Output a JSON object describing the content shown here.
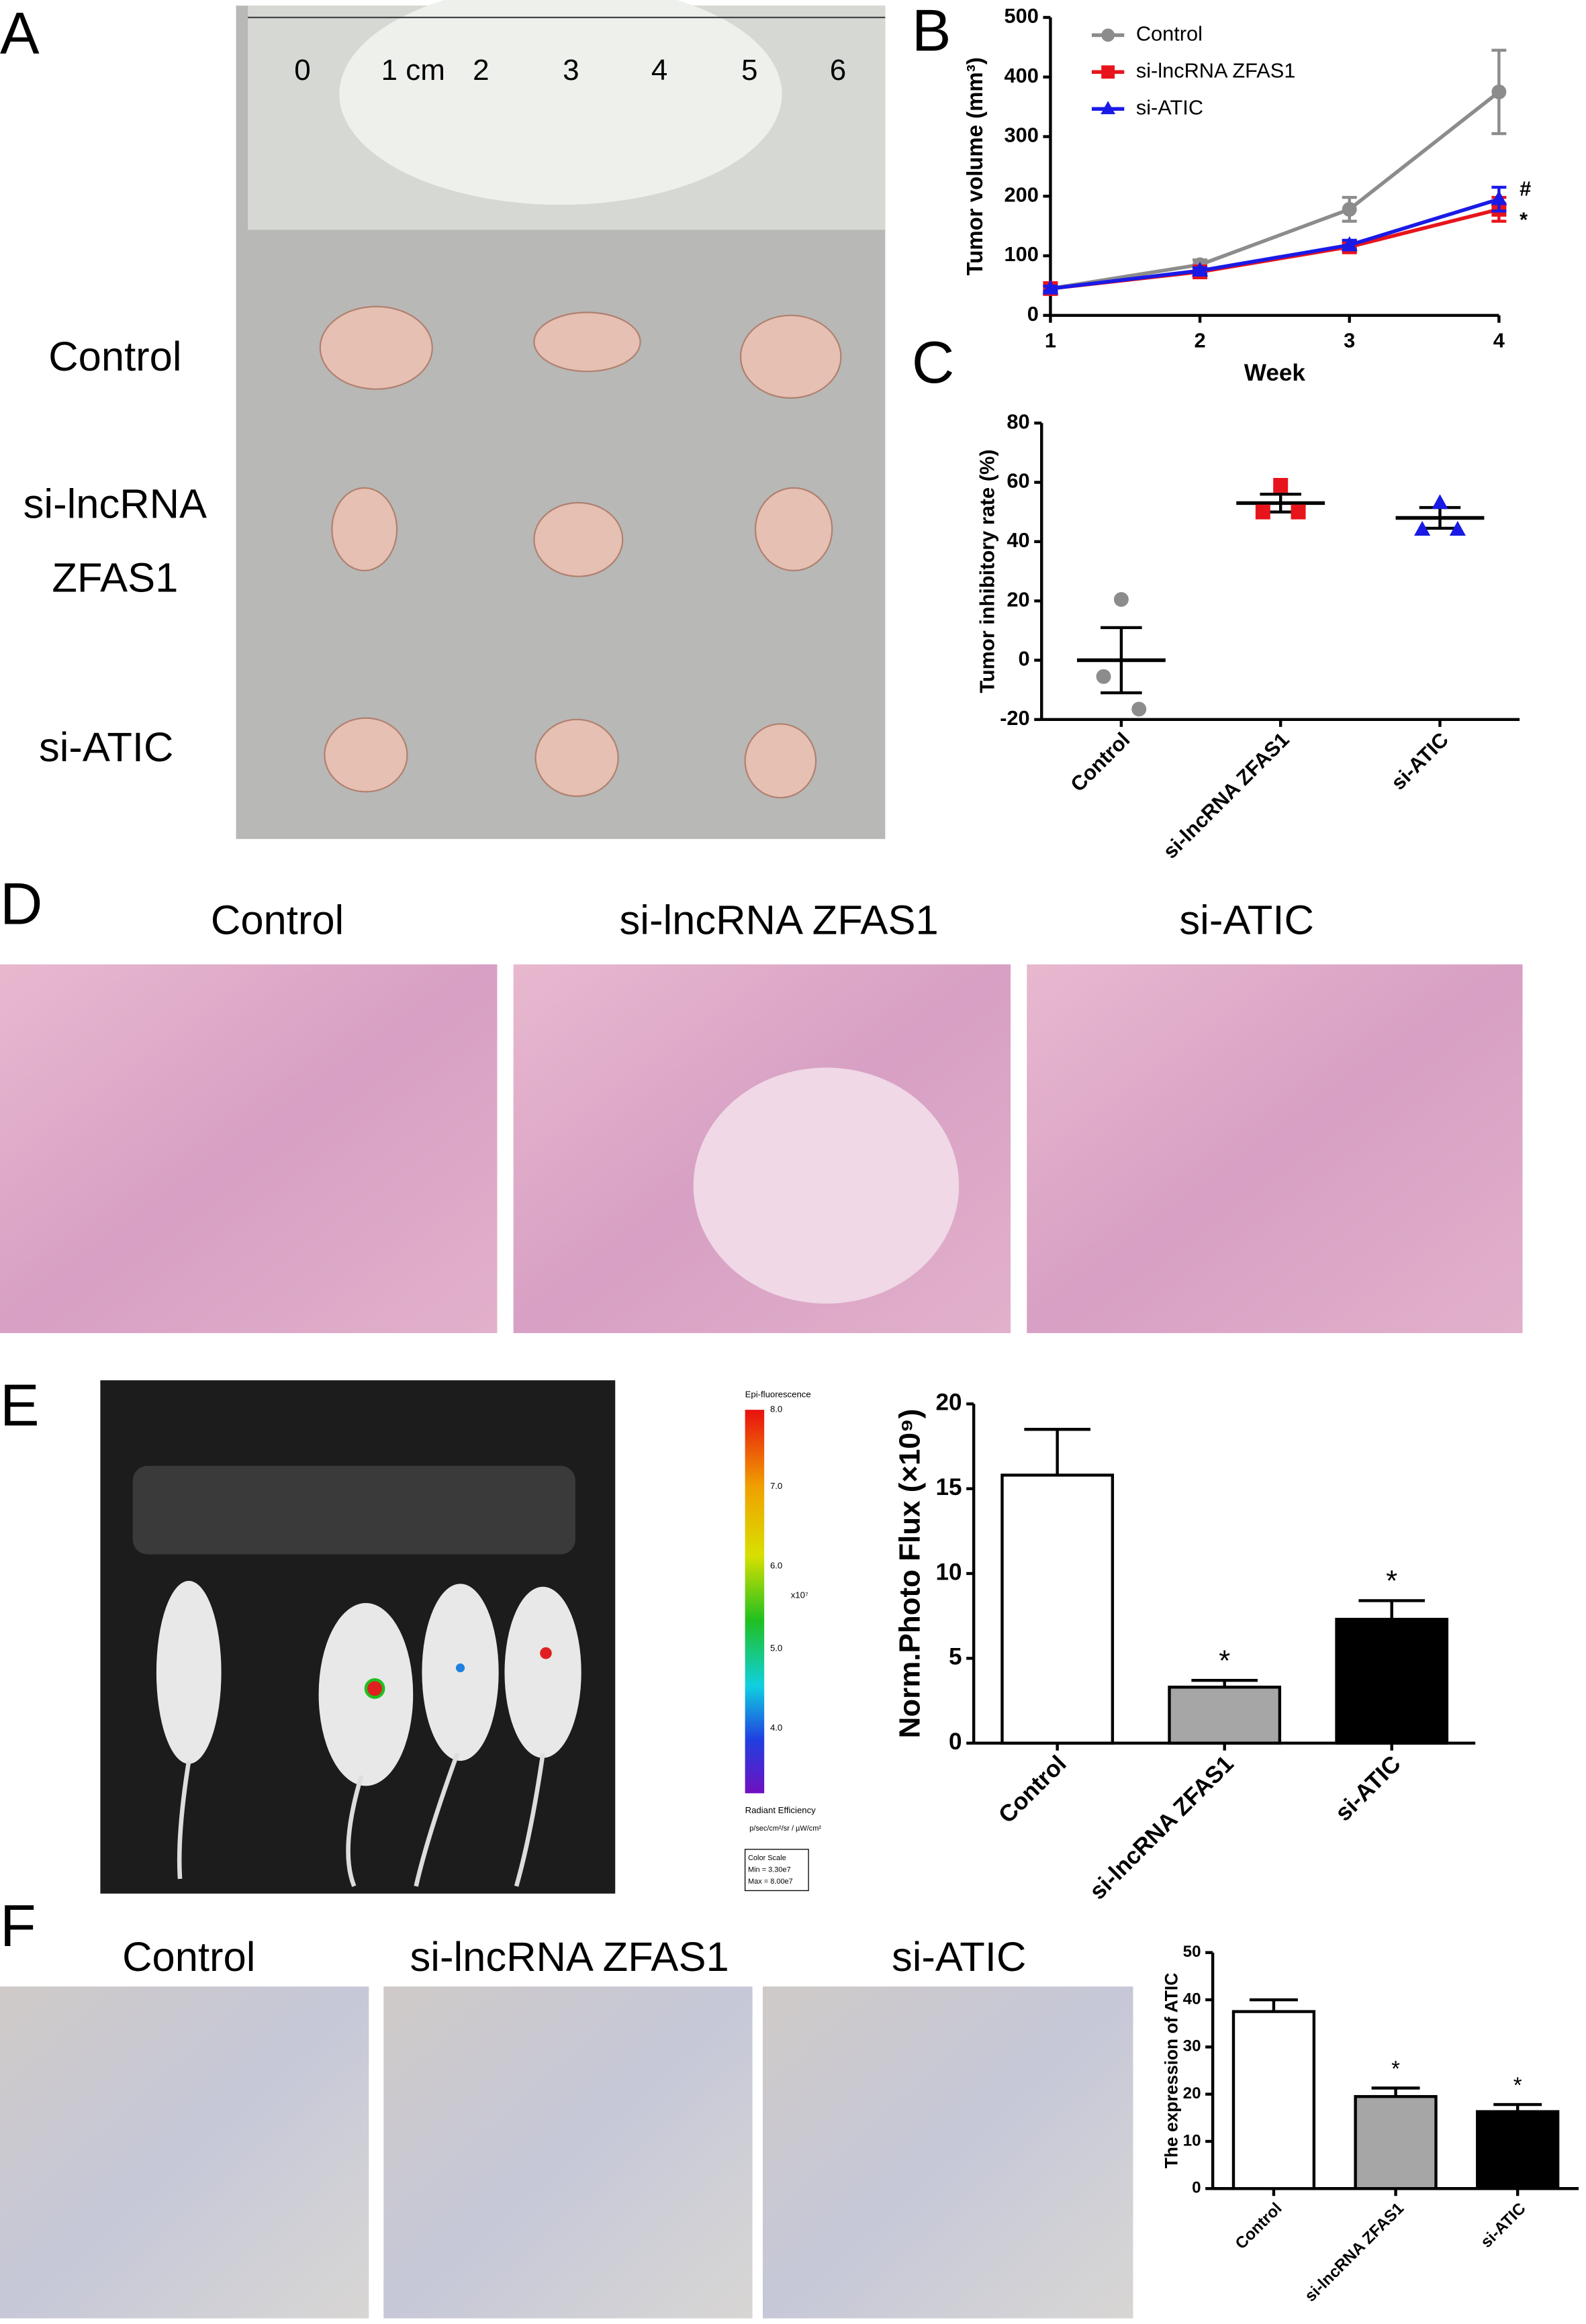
{
  "panels": {
    "labels": [
      "A",
      "B",
      "C",
      "D",
      "E",
      "F"
    ]
  },
  "photo_a": {
    "ruler": [
      "0",
      "1 cm",
      "2",
      "3",
      "4",
      "5",
      "6"
    ],
    "rows": [
      "Control",
      "si-lncRNA",
      "ZFAS1",
      "si-ATIC"
    ]
  },
  "photo_d": {
    "labels": [
      "Control",
      "si-lncRNA ZFAS1",
      "si-ATIC"
    ]
  },
  "photo_e": {
    "colorbar": {
      "title": "Epi-fluorescence",
      "ticks": [
        "8.0",
        "7.0",
        "6.0",
        "5.0",
        "4.0"
      ],
      "unit": "x10⁷",
      "label": "Radiant Efficiency",
      "units": "p/sec/cm²/sr / µW/cm²",
      "scale": [
        "Color Scale",
        "Min = 3.30e7",
        "Max = 8.00e7"
      ]
    }
  },
  "photo_f": {
    "labels": [
      "Control",
      "si-lncRNA ZFAS1",
      "si-ATIC"
    ]
  },
  "chart_data": [
    {
      "type": "line",
      "x_label": "Week",
      "y_label": "Tumor volume (mm³)",
      "x": [
        1,
        2,
        3,
        4
      ],
      "xlim": [
        1,
        4
      ],
      "xticks": [
        1,
        2,
        3,
        4
      ],
      "ylim": [
        0,
        500
      ],
      "yticks": [
        0,
        100,
        200,
        300,
        400,
        500
      ],
      "legend": "upper left",
      "series": [
        {
          "name": "Control",
          "color": "#8c8c8c",
          "marker": "circle",
          "values": [
            45,
            85,
            178,
            375
          ],
          "errors": [
            5,
            8,
            20,
            70
          ]
        },
        {
          "name": "si-lncRNA ZFAS1",
          "color": "#e8141b",
          "marker": "square",
          "values": [
            45,
            73,
            115,
            178
          ],
          "errors": [
            5,
            5,
            8,
            20
          ],
          "annotation": "*"
        },
        {
          "name": "si-ATIC",
          "color": "#1a1ae6",
          "marker": "triangle",
          "values": [
            45,
            75,
            118,
            195
          ],
          "errors": [
            4,
            5,
            8,
            20
          ],
          "annotation": "#"
        }
      ]
    },
    {
      "type": "dot",
      "y_label": "Tumor inhibitory rate (%)",
      "categories": [
        "Control",
        "si-lncRNA ZFAS1",
        "si-ATIC"
      ],
      "ylim": [
        -20,
        80
      ],
      "yticks": [
        -20,
        0,
        20,
        40,
        60,
        80
      ],
      "colors": [
        "#8c8c8c",
        "#e8141b",
        "#1a1ae6"
      ],
      "markers": [
        "circle",
        "square",
        "triangle"
      ],
      "points": [
        [
          20.5,
          -5.5,
          -16.5
        ],
        [
          59,
          50,
          50
        ],
        [
          53,
          44,
          44
        ]
      ],
      "means": [
        0,
        53,
        48
      ],
      "errors": [
        11,
        3,
        3.5
      ]
    },
    {
      "type": "bar",
      "y_label": "Norm.Photo Flux (×10⁹)",
      "categories": [
        "Control",
        "si-lncRNA ZFAS1",
        "si-ATIC"
      ],
      "ylim": [
        0,
        20
      ],
      "yticks": [
        0,
        5,
        10,
        15,
        20
      ],
      "values": [
        15.8,
        3.3,
        7.3
      ],
      "errors": [
        2.7,
        0.4,
        1.1
      ],
      "colors": [
        "#ffffff",
        "#a6a6a6",
        "#000000"
      ],
      "annotations": [
        null,
        "*",
        "*"
      ]
    },
    {
      "type": "bar",
      "y_label": "The expression of ATIC",
      "categories": [
        "Control",
        "si-lncRNA ZFAS1",
        "si-ATIC"
      ],
      "ylim": [
        0,
        50
      ],
      "yticks": [
        0,
        10,
        20,
        30,
        40,
        50
      ],
      "values": [
        37.5,
        19.5,
        16.3
      ],
      "errors": [
        2.5,
        1.8,
        1.5
      ],
      "colors": [
        "#ffffff",
        "#a6a6a6",
        "#000000"
      ],
      "annotations": [
        null,
        "*",
        "*"
      ]
    }
  ]
}
